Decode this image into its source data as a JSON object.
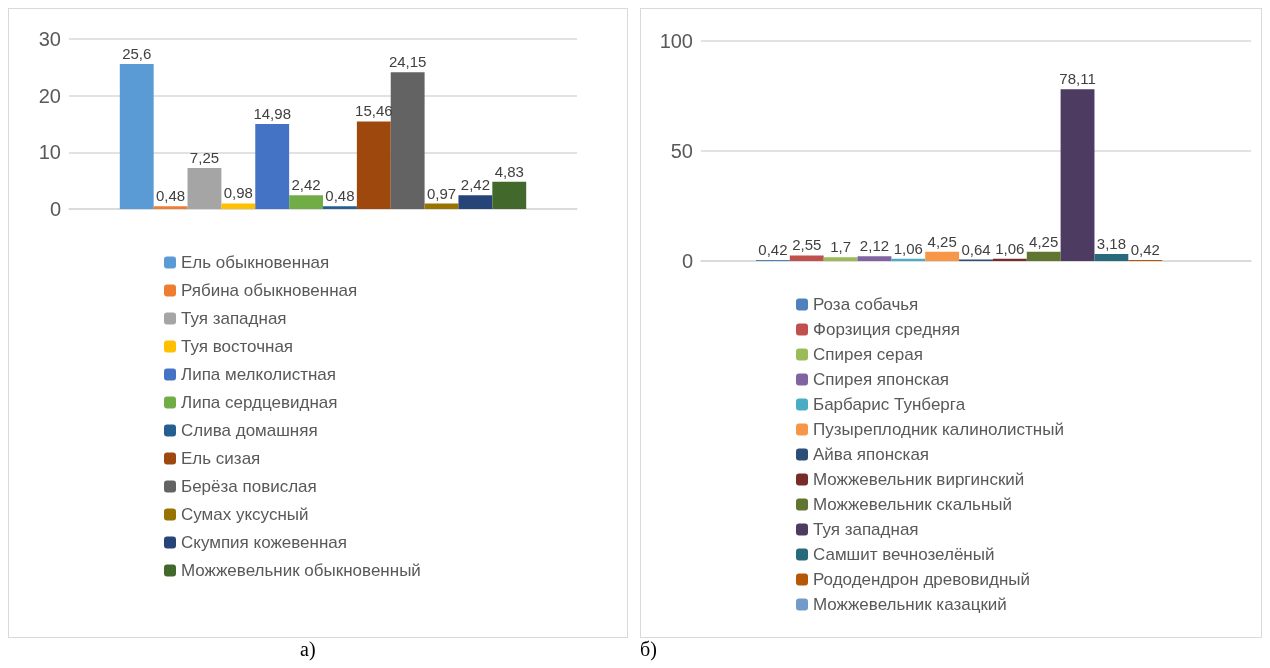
{
  "chart_data": [
    {
      "type": "bar",
      "categories": [
        null
      ],
      "ylim": [
        0,
        30
      ],
      "yticks": [
        0,
        10,
        20,
        30
      ],
      "grid": "y",
      "legend": "bottom",
      "annotations": [
        "а)"
      ],
      "series": [
        {
          "name": "Ель обыкновенная",
          "color": "#5b9bd5",
          "values": [
            25.6
          ],
          "value_labels": [
            "25,6"
          ]
        },
        {
          "name": "Рябина обыкновенная",
          "color": "#ed7d31",
          "values": [
            0.48
          ],
          "value_labels": [
            "0,48"
          ]
        },
        {
          "name": "Туя западная",
          "color": "#a5a5a5",
          "values": [
            7.25
          ],
          "value_labels": [
            "7,25"
          ]
        },
        {
          "name": "Туя восточная",
          "color": "#ffc000",
          "values": [
            0.98
          ],
          "value_labels": [
            "0,98"
          ]
        },
        {
          "name": "Липа мелколистная",
          "color": "#4472c4",
          "values": [
            14.98
          ],
          "value_labels": [
            "14,98"
          ]
        },
        {
          "name": "Липа сердцевидная",
          "color": "#70ad47",
          "values": [
            2.42
          ],
          "value_labels": [
            "2,42"
          ]
        },
        {
          "name": "Слива домашняя",
          "color": "#255e91",
          "values": [
            0.48
          ],
          "value_labels": [
            "0,48"
          ]
        },
        {
          "name": "Ель сизая",
          "color": "#9e480e",
          "values": [
            15.46
          ],
          "value_labels": [
            "15,46"
          ]
        },
        {
          "name": "Берёза повислая",
          "color": "#636363",
          "values": [
            24.15
          ],
          "value_labels": [
            "24,15"
          ]
        },
        {
          "name": "Сумах уксусный",
          "color": "#997300",
          "values": [
            0.97
          ],
          "value_labels": [
            "0,97"
          ]
        },
        {
          "name": "Скумпия кожевенная",
          "color": "#264478",
          "values": [
            2.42
          ],
          "value_labels": [
            "2,42"
          ]
        },
        {
          "name": "Можжевельник обыкновенный",
          "color": "#43682b",
          "values": [
            4.83
          ],
          "value_labels": [
            "4,83"
          ]
        }
      ]
    },
    {
      "type": "bar",
      "categories": [
        null
      ],
      "ylim": [
        0,
        100
      ],
      "yticks": [
        0,
        50,
        100
      ],
      "grid": "y",
      "legend": "bottom",
      "annotations": [
        "б)"
      ],
      "series": [
        {
          "name": "Роза собачья",
          "color": "#4f81bd",
          "values": [
            0.42
          ],
          "value_labels": [
            "0,42"
          ]
        },
        {
          "name": "Форзиция средняя",
          "color": "#c0504d",
          "values": [
            2.55
          ],
          "value_labels": [
            "2,55"
          ]
        },
        {
          "name": "Спирея серая",
          "color": "#9bbb59",
          "values": [
            1.7
          ],
          "value_labels": [
            "1,7"
          ]
        },
        {
          "name": "Спирея японская",
          "color": "#8064a2",
          "values": [
            2.12
          ],
          "value_labels": [
            "2,12"
          ]
        },
        {
          "name": "Барбарис Тунберга",
          "color": "#4bacc6",
          "values": [
            1.06
          ],
          "value_labels": [
            "1,06"
          ]
        },
        {
          "name": "Пузыреплодник калинолистный",
          "color": "#f79646",
          "values": [
            4.25
          ],
          "value_labels": [
            "4,25"
          ]
        },
        {
          "name": "Айва японская",
          "color": "#2c4d75",
          "values": [
            0.64
          ],
          "value_labels": [
            "0,64"
          ]
        },
        {
          "name": "Можжевельник виргинский",
          "color": "#772c2a",
          "values": [
            1.06
          ],
          "value_labels": [
            "1,06"
          ]
        },
        {
          "name": "Можжевельник скальный",
          "color": "#5f7530",
          "values": [
            4.25
          ],
          "value_labels": [
            "4,25"
          ]
        },
        {
          "name": "Туя западная",
          "color": "#4d3b62",
          "values": [
            78.11
          ],
          "value_labels": [
            "78,11"
          ]
        },
        {
          "name": "Самшит вечнозелёный",
          "color": "#276a7c",
          "values": [
            3.18
          ],
          "value_labels": [
            "3,18"
          ]
        },
        {
          "name": "Рододендрон древовидный",
          "color": "#b65708",
          "values": [
            0.42
          ],
          "value_labels": [
            "0,42"
          ]
        },
        {
          "name": "Можжевельник казацкий",
          "color": "#729aca",
          "values": [
            null
          ],
          "value_labels": [
            null
          ]
        }
      ]
    }
  ]
}
